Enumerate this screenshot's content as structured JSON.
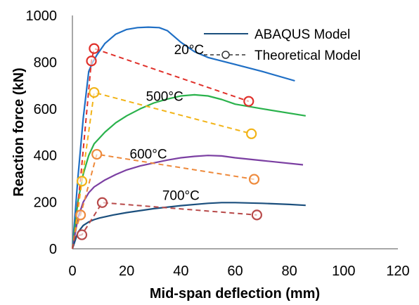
{
  "chart_data": {
    "type": "line",
    "xlabel": "Mid-span deflection (mm)",
    "ylabel": "Reaction force (kN)",
    "xlim": [
      0,
      120
    ],
    "ylim": [
      0,
      1000
    ],
    "xticks": [
      "0",
      "20",
      "40",
      "60",
      "80",
      "100",
      "120"
    ],
    "yticks": [
      "0",
      "200",
      "400",
      "600",
      "800",
      "1000"
    ],
    "grid": false,
    "legend_position": "top-right",
    "legend": [
      {
        "label": "ABAQUS  Model",
        "style": "solid"
      },
      {
        "label": "Theoretical Model",
        "style": "dashed-marker"
      }
    ],
    "annotations": [
      {
        "text": "20°C",
        "x": 43,
        "y": 855
      },
      {
        "text": "500°C",
        "x": 34,
        "y": 655
      },
      {
        "text": "600°C",
        "x": 28,
        "y": 408
      },
      {
        "text": "700°C",
        "x": 40,
        "y": 230
      }
    ],
    "abaqus_series": [
      {
        "name": "20°C",
        "color": "#1f6fc5",
        "x": [
          0,
          2,
          4,
          6,
          7.5,
          9,
          12,
          16,
          20,
          24,
          28,
          32,
          35,
          40,
          45,
          50,
          60,
          70,
          82
        ],
        "y": [
          0,
          300,
          560,
          760,
          800,
          830,
          880,
          920,
          940,
          948,
          950,
          948,
          935,
          885,
          845,
          820,
          790,
          760,
          720
        ]
      },
      {
        "name": "500°C",
        "color": "#2ab24c",
        "x": [
          0,
          2,
          4,
          6,
          8,
          12,
          16,
          20,
          25,
          30,
          35,
          40,
          45,
          50,
          55,
          60,
          70,
          86
        ],
        "y": [
          0,
          200,
          320,
          400,
          450,
          500,
          540,
          570,
          600,
          625,
          642,
          655,
          660,
          655,
          640,
          620,
          600,
          570
        ]
      },
      {
        "name": "600°C",
        "color": "#7b3fa2",
        "x": [
          0,
          2,
          4,
          6,
          8,
          12,
          16,
          20,
          25,
          30,
          35,
          40,
          45,
          50,
          55,
          60,
          70,
          85
        ],
        "y": [
          0,
          130,
          200,
          240,
          265,
          295,
          318,
          338,
          355,
          368,
          380,
          390,
          396,
          400,
          398,
          390,
          378,
          360
        ]
      },
      {
        "name": "700°C",
        "color": "#1b4f7d",
        "x": [
          0,
          2,
          4,
          6,
          8,
          10,
          15,
          20,
          30,
          40,
          50,
          55,
          60,
          70,
          80,
          86
        ],
        "y": [
          0,
          70,
          100,
          115,
          125,
          132,
          145,
          155,
          172,
          185,
          195,
          198,
          198,
          195,
          190,
          186
        ]
      }
    ],
    "theoretical_series": [
      {
        "name": "20°C",
        "color": "#e0302a",
        "x": [
          0,
          1,
          3,
          7,
          8,
          65
        ],
        "y": [
          0,
          75,
          300,
          805,
          858,
          632
        ],
        "markers": [
          [
            7,
            805
          ],
          [
            8,
            858
          ],
          [
            65,
            632
          ]
        ]
      },
      {
        "name": "500°C",
        "color": "#f2b418",
        "x": [
          0,
          1,
          3.5,
          8,
          66
        ],
        "y": [
          0,
          75,
          290,
          670,
          493
        ],
        "markers": [
          [
            3.5,
            290
          ],
          [
            8,
            670
          ],
          [
            66,
            493
          ]
        ]
      },
      {
        "name": "600°C",
        "color": "#ee8a3c",
        "x": [
          0,
          1,
          3,
          9,
          67
        ],
        "y": [
          0,
          75,
          145,
          405,
          298
        ],
        "markers": [
          [
            3,
            145
          ],
          [
            9,
            405
          ],
          [
            67,
            298
          ]
        ]
      },
      {
        "name": "700°C",
        "color": "#b84a4a",
        "x": [
          0,
          1,
          3.5,
          11,
          68
        ],
        "y": [
          0,
          55,
          60,
          198,
          145
        ],
        "markers": [
          [
            3.5,
            60
          ],
          [
            11,
            198
          ],
          [
            68,
            145
          ]
        ]
      }
    ]
  }
}
